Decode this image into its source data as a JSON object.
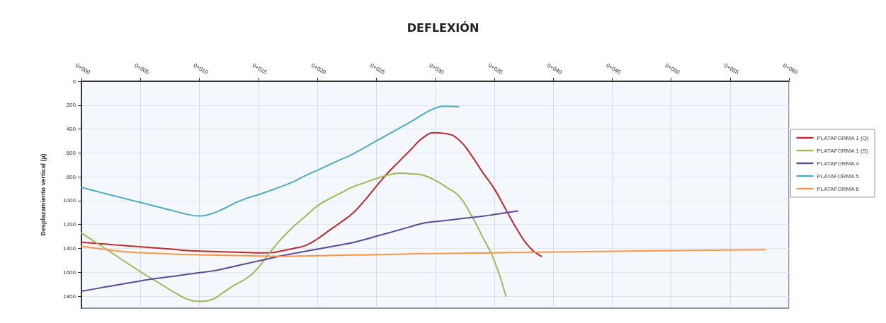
{
  "chart_data": {
    "type": "line",
    "title": "DEFLEXIÓN",
    "ylabel": "Desplazamiento vertical (µ)",
    "categories": [
      "0+000",
      null,
      null,
      null,
      null,
      "0+005",
      null,
      null,
      null,
      null,
      "0+010",
      null,
      null,
      null,
      null,
      "0+015",
      null,
      null,
      null,
      null,
      "0+020",
      null,
      null,
      null,
      null,
      "0+025",
      null,
      null,
      null,
      null,
      "0+030",
      null,
      null,
      null,
      null,
      "0+035",
      null,
      null,
      null,
      null,
      "0+040",
      null,
      null,
      null,
      null,
      "0+045",
      null,
      null,
      null,
      null,
      "0+050",
      null,
      null,
      null,
      null,
      "0+055",
      null,
      null,
      null,
      null,
      "0+060"
    ],
    "ylim": [
      1900,
      0
    ],
    "yticks": [
      0,
      200,
      400,
      600,
      800,
      1000,
      1200,
      1400,
      1600,
      1800
    ],
    "grid": true,
    "legend": "right",
    "marker": "none",
    "line_style": "solid",
    "series": [
      {
        "name": "PLATAFORMA 1 (Q)",
        "color": "#c0282e",
        "values": [
          1348,
          1356,
          1363,
          1371,
          1379,
          1386,
          1394,
          1401,
          1409,
          1417,
          1422,
          1425,
          1428,
          1431,
          1434,
          1437,
          1436,
          1420,
          1400,
          1375,
          1320,
          1250,
          1180,
          1105,
          1000,
          880,
          765,
          665,
          565,
          470,
          430,
          440,
          490,
          610,
          760,
          899,
          1075,
          1250,
          1390,
          1466,
          null,
          null,
          null,
          null,
          null,
          null,
          null,
          null,
          null,
          null,
          null,
          null,
          null,
          null,
          null,
          null,
          null,
          null,
          null,
          null,
          null
        ]
      },
      {
        "name": "PLATAFORMA 1 (S)",
        "color": "#9bbb59",
        "values": [
          1270,
          1335,
          1400,
          1465,
          1530,
          1595,
          1655,
          1715,
          1775,
          1825,
          1843,
          1830,
          1770,
          1705,
          1650,
          1560,
          1430,
          1315,
          1215,
          1130,
          1045,
          985,
          935,
          885,
          850,
          815,
          785,
          770,
          775,
          787,
          830,
          890,
          960,
          1110,
          1300,
          1500,
          1800,
          null,
          null,
          null,
          null,
          null,
          null,
          null,
          null,
          null,
          null,
          null,
          null,
          null,
          null,
          null,
          null,
          null,
          null,
          null,
          null,
          null,
          null,
          null,
          null
        ]
      },
      {
        "name": "PLATAFORMA 4",
        "color": "#5b4a9a",
        "values": [
          1758,
          1741,
          1723,
          1706,
          1689,
          1672,
          1656,
          1643,
          1630,
          1616,
          1603,
          1590,
          1571,
          1549,
          1527,
          1505,
          1483,
          1461,
          1442,
          1424,
          1406,
          1388,
          1370,
          1351,
          1326,
          1298,
          1271,
          1243,
          1215,
          1188,
          1175,
          1164,
          1153,
          1141,
          1130,
          1116,
          1101,
          1086,
          null,
          null,
          null,
          null,
          null,
          null,
          null,
          null,
          null,
          null,
          null,
          null,
          null,
          null,
          null,
          null,
          null,
          null,
          null,
          null,
          null,
          null,
          null
        ]
      },
      {
        "name": "PLATAFORMA 5",
        "color": "#4bacc6",
        "values": [
          888,
          915,
          940,
          965,
          990,
          1015,
          1040,
          1065,
          1090,
          1115,
          1128,
          1110,
          1070,
          1020,
          980,
          950,
          915,
          880,
          840,
          790,
          745,
          700,
          655,
          610,
          555,
          500,
          445,
          390,
          335,
          275,
          225,
          208,
          213,
          null,
          null,
          null,
          null,
          null,
          null,
          null,
          null,
          null,
          null,
          null,
          null,
          null,
          null,
          null,
          null,
          null,
          null,
          null,
          null,
          null,
          null,
          null,
          null,
          null,
          null,
          null,
          null
        ]
      },
      {
        "name": "PLATAFORMA 6",
        "color": "#f79646",
        "values": [
          1382,
          1395,
          1408,
          1420,
          1430,
          1436,
          1440,
          1444,
          1448,
          1451,
          1453,
          1455,
          1457,
          1459,
          1461,
          1463,
          1465,
          1466,
          1465,
          1463,
          1461,
          1459,
          1457,
          1455,
          1454,
          1452,
          1450,
          1448,
          1446,
          1444,
          1443,
          1442,
          1440,
          1439,
          1438,
          1437,
          1435,
          1434,
          1433,
          1431,
          1430,
          1429,
          1428,
          1426,
          1425,
          1424,
          1422,
          1421,
          1420,
          1419,
          1418,
          1417,
          1416,
          1415,
          1414,
          1413,
          1412,
          1411,
          1410,
          null,
          null
        ]
      }
    ]
  }
}
